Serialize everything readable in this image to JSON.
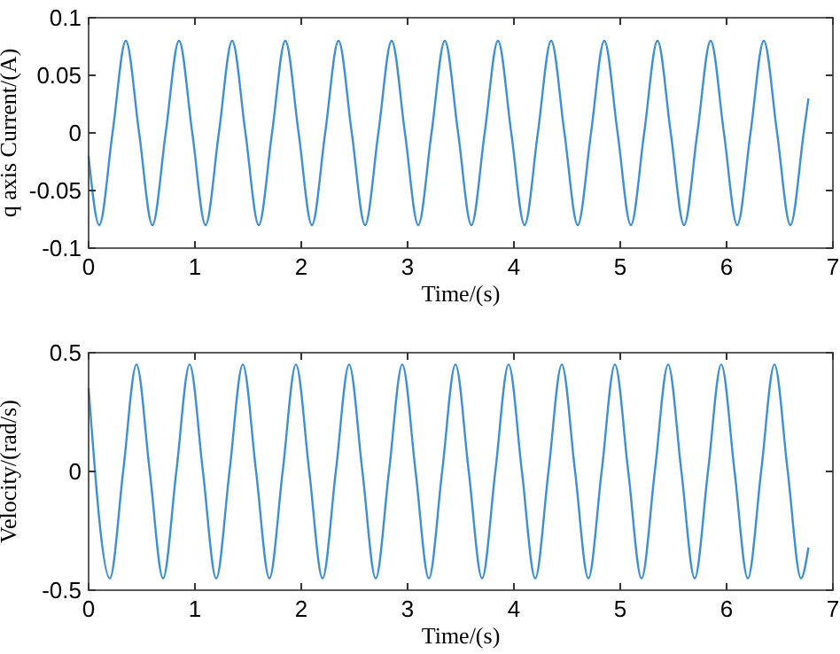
{
  "chart_data": [
    {
      "type": "line",
      "xlabel": "Time/(s)",
      "ylabel": "q axis Current/(A)",
      "xlim": [
        0,
        7
      ],
      "ylim": [
        -0.1,
        0.1
      ],
      "xticks": [
        0,
        1,
        2,
        3,
        4,
        5,
        6,
        7
      ],
      "yticks": [
        -0.1,
        -0.05,
        0,
        0.05,
        0.1
      ],
      "series": [
        {
          "color": "#3d8fd8",
          "x": [
            0,
            0.1,
            0.225,
            0.35,
            0.475,
            0.6,
            0.725,
            0.85,
            0.975,
            1.1,
            1.225,
            1.35,
            1.475,
            1.6,
            1.725,
            1.85,
            1.975,
            2.1,
            2.225,
            2.35,
            2.475,
            2.6,
            2.725,
            2.85,
            2.975,
            3.1,
            3.225,
            3.35,
            3.475,
            3.6,
            3.725,
            3.85,
            3.975,
            4.1,
            4.225,
            4.35,
            4.475,
            4.6,
            4.725,
            4.85,
            4.975,
            5.1,
            5.225,
            5.35,
            5.475,
            5.6,
            5.725,
            5.85,
            5.975,
            6.1,
            6.225,
            6.35,
            6.475,
            6.6,
            6.725,
            6.77
          ],
          "values": [
            -0.02,
            -0.08,
            0,
            0.08,
            0,
            -0.08,
            0,
            0.08,
            0,
            -0.08,
            0,
            0.08,
            0,
            -0.08,
            0,
            0.08,
            0,
            -0.08,
            0,
            0.08,
            0,
            -0.08,
            0,
            0.08,
            0,
            -0.08,
            0,
            0.08,
            0,
            -0.08,
            0,
            0.08,
            0,
            -0.08,
            0,
            0.08,
            0,
            -0.08,
            0,
            0.08,
            0,
            -0.08,
            0,
            0.08,
            0,
            -0.08,
            0,
            0.08,
            0,
            -0.08,
            0,
            0.08,
            0,
            -0.08,
            0,
            0.03
          ]
        }
      ]
    },
    {
      "type": "line",
      "xlabel": "Time/(s)",
      "ylabel": "Velocity/(rad/s)",
      "xlim": [
        0,
        7
      ],
      "ylim": [
        -0.5,
        0.5
      ],
      "xticks": [
        0,
        1,
        2,
        3,
        4,
        5,
        6,
        7
      ],
      "yticks": [
        -0.5,
        0,
        0.5
      ],
      "series": [
        {
          "color": "#3d8fd8",
          "x": [
            0,
            0.2,
            0.325,
            0.45,
            0.575,
            0.7,
            0.825,
            0.95,
            1.075,
            1.2,
            1.325,
            1.45,
            1.575,
            1.7,
            1.825,
            1.95,
            2.075,
            2.2,
            2.325,
            2.45,
            2.575,
            2.7,
            2.825,
            2.95,
            3.075,
            3.2,
            3.325,
            3.45,
            3.575,
            3.7,
            3.825,
            3.95,
            4.075,
            4.2,
            4.325,
            4.45,
            4.575,
            4.7,
            4.825,
            4.95,
            5.075,
            5.2,
            5.325,
            5.45,
            5.575,
            5.7,
            5.825,
            5.95,
            6.075,
            6.2,
            6.325,
            6.45,
            6.575,
            6.7,
            6.77
          ],
          "values": [
            0.35,
            -0.45,
            0,
            0.45,
            0,
            -0.45,
            0,
            0.45,
            0,
            -0.45,
            0,
            0.45,
            0,
            -0.45,
            0,
            0.45,
            0,
            -0.45,
            0,
            0.45,
            0,
            -0.45,
            0,
            0.45,
            0,
            -0.45,
            0,
            0.45,
            0,
            -0.45,
            0,
            0.45,
            0,
            -0.45,
            0,
            0.45,
            0,
            -0.45,
            0,
            0.45,
            0,
            -0.45,
            0,
            0.45,
            0,
            -0.45,
            0,
            0.45,
            0,
            -0.45,
            0,
            0.45,
            0,
            -0.45,
            -0.32
          ]
        }
      ]
    }
  ]
}
